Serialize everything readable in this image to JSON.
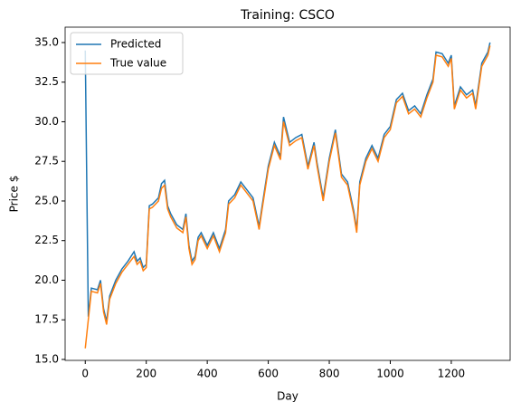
{
  "chart_data": {
    "type": "line",
    "title": "Training: CSCO",
    "x_label": "Day",
    "y_label": "Price $",
    "x": [
      0,
      10,
      20,
      40,
      50,
      60,
      70,
      80,
      100,
      120,
      140,
      160,
      170,
      180,
      190,
      200,
      210,
      220,
      240,
      250,
      260,
      270,
      280,
      300,
      320,
      330,
      340,
      350,
      360,
      370,
      380,
      400,
      420,
      440,
      460,
      470,
      490,
      510,
      530,
      550,
      570,
      580,
      600,
      620,
      640,
      650,
      670,
      690,
      710,
      730,
      750,
      760,
      780,
      800,
      820,
      840,
      860,
      880,
      890,
      900,
      920,
      940,
      960,
      980,
      1000,
      1020,
      1040,
      1060,
      1080,
      1100,
      1120,
      1140,
      1150,
      1170,
      1190,
      1200,
      1210,
      1230,
      1250,
      1270,
      1280,
      1300,
      1320,
      1327
    ],
    "series": [
      {
        "name": "Predicted",
        "color": "#1f77b4",
        "values": [
          34.5,
          17.7,
          19.5,
          19.4,
          20.0,
          18.2,
          17.4,
          19.0,
          20.0,
          20.7,
          21.2,
          21.8,
          21.2,
          21.4,
          20.8,
          21.0,
          24.7,
          24.8,
          25.2,
          26.1,
          26.3,
          24.7,
          24.2,
          23.5,
          23.2,
          24.2,
          22.2,
          21.2,
          21.5,
          22.7,
          23.0,
          22.2,
          23.0,
          22.0,
          23.2,
          25.0,
          25.4,
          26.2,
          25.7,
          25.2,
          23.4,
          24.7,
          27.2,
          28.7,
          27.8,
          30.3,
          28.7,
          29.0,
          29.2,
          27.2,
          28.7,
          27.4,
          25.2,
          27.7,
          29.5,
          26.7,
          26.2,
          24.4,
          23.2,
          26.2,
          27.7,
          28.5,
          27.7,
          29.2,
          29.7,
          31.4,
          31.8,
          30.7,
          31.0,
          30.5,
          31.7,
          32.7,
          34.4,
          34.3,
          33.7,
          34.2,
          31.0,
          32.2,
          31.7,
          32.0,
          31.0,
          33.7,
          34.4,
          35.0
        ]
      },
      {
        "name": "True value",
        "color": "#ff7f0e",
        "values": [
          15.7,
          17.5,
          19.3,
          19.2,
          19.8,
          18.0,
          17.2,
          18.8,
          19.8,
          20.5,
          21.0,
          21.5,
          21.0,
          21.2,
          20.6,
          20.8,
          24.5,
          24.6,
          25.0,
          25.8,
          26.0,
          24.5,
          24.0,
          23.3,
          23.0,
          24.0,
          22.0,
          21.0,
          21.3,
          22.5,
          22.8,
          22.0,
          22.8,
          21.8,
          23.0,
          24.8,
          25.2,
          26.0,
          25.5,
          25.0,
          23.2,
          24.5,
          27.0,
          28.5,
          27.6,
          30.0,
          28.5,
          28.8,
          29.0,
          27.0,
          28.5,
          27.2,
          25.0,
          27.5,
          29.3,
          26.5,
          26.0,
          24.2,
          23.0,
          26.0,
          27.5,
          28.3,
          27.5,
          29.0,
          29.5,
          31.2,
          31.6,
          30.5,
          30.8,
          30.3,
          31.5,
          32.5,
          34.2,
          34.1,
          33.5,
          34.0,
          30.8,
          32.0,
          31.5,
          31.8,
          30.8,
          33.5,
          34.2,
          34.8
        ]
      }
    ],
    "xlim": [
      -66,
      1393
    ],
    "ylim": [
      14.94,
      35.97
    ],
    "xticks": [
      0,
      200,
      400,
      600,
      800,
      1000,
      1200
    ],
    "yticks": [
      {
        "value": 15,
        "label": "15.0"
      },
      17.5,
      {
        "value": 20,
        "label": "20.0"
      },
      22.5,
      {
        "value": 25,
        "label": "25.0"
      },
      27.5,
      {
        "value": 30,
        "label": "30.0"
      },
      32.5,
      {
        "value": 35,
        "label": "35.0"
      }
    ],
    "legend": "upper left",
    "grid": false
  }
}
